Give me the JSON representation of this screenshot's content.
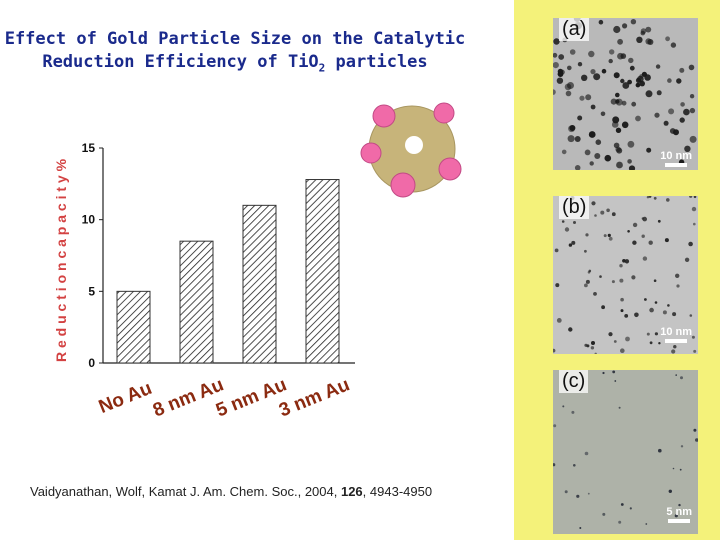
{
  "title_line1": "Effect of Gold Particle Size on the Catalytic",
  "title_line2_pre": "Reduction Efficiency of TiO",
  "title_line2_sub": "2",
  "title_line2_post": " particles",
  "citation": {
    "authors": "Vaidyanathan, Wolf, Kamat  J. Am. Chem. Soc.",
    "sep1": ", 2004, ",
    "volume": "126",
    "pages": ", 4943-4950"
  },
  "colors": {
    "title": "#1a2a8c",
    "axis_label": "#cc2222",
    "category_label": "#8b2a10",
    "stripe": "#f4f27a",
    "particle_core": "#c7b47a",
    "particle_dot": "#f06aa8"
  },
  "chart_data": {
    "type": "bar",
    "categories": [
      "No Au",
      "8 nm Au",
      "5 nm Au",
      "3 nm Au"
    ],
    "values": [
      5,
      8.5,
      11,
      12.8
    ],
    "ylabel": "R e d u c t i o n   c a p a c i t y  %",
    "yticks": [
      "0",
      "5",
      "10",
      "15"
    ],
    "ylim": [
      0,
      15
    ],
    "pattern": "diagonal hatch",
    "grid": false,
    "legend": "none"
  },
  "panels": [
    {
      "tag": "(a)",
      "scale": "10 nm",
      "texture": "large-dense"
    },
    {
      "tag": "(b)",
      "scale": "10 nm",
      "texture": "small-sparse"
    },
    {
      "tag": "(c)",
      "scale": "5 nm",
      "texture": "faint"
    }
  ],
  "diagram": {
    "icon": "gold-decorated-tio2-particle-icon"
  }
}
